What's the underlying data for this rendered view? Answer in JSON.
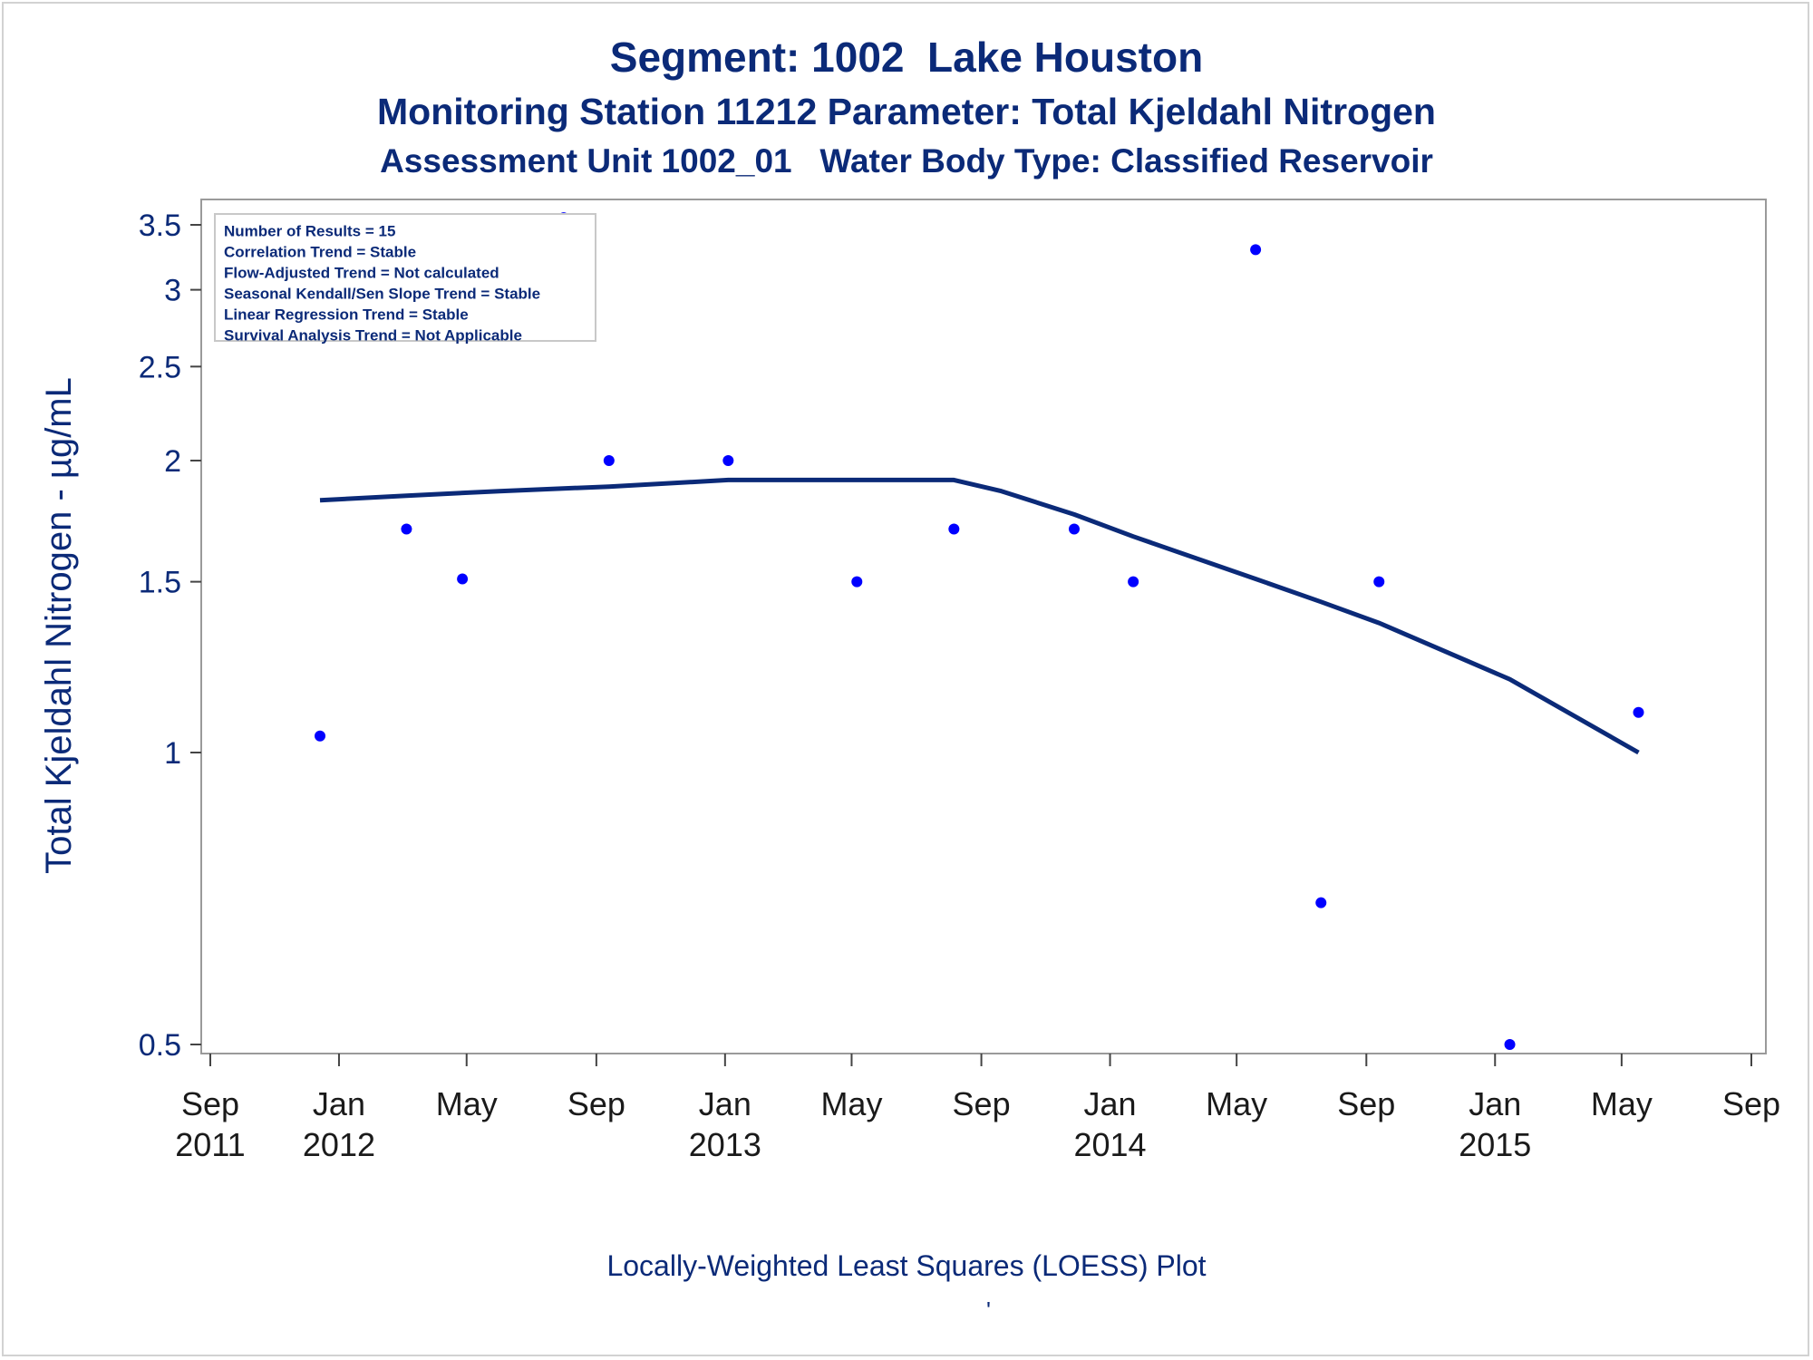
{
  "titles": {
    "line1": "Segment: 1002  Lake Houston",
    "line2": "Monitoring Station 11212 Parameter: Total Kjeldahl Nitrogen",
    "line3": "Assessment Unit 1002_01   Water Body Type: Classified Reservoir"
  },
  "footnote": "Locally-Weighted Least Squares (LOESS) Plot",
  "footnote_mark": "'",
  "chart_data": {
    "type": "scatter",
    "y_scale": "log",
    "ylabel": "Total Kjeldahl Nitrogen -  µg/mL",
    "xlabel": "",
    "ylim": [
      0.49,
      3.6
    ],
    "xlim": [
      "2011-08-15",
      "2015-09-15"
    ],
    "y_ticks": [
      {
        "value": 0.5,
        "label": "0.5"
      },
      {
        "value": 1,
        "label": "1"
      },
      {
        "value": 1.5,
        "label": "1.5"
      },
      {
        "value": 2,
        "label": "2"
      },
      {
        "value": 2.5,
        "label": "2.5"
      },
      {
        "value": 3,
        "label": "3"
      },
      {
        "value": 3.5,
        "label": "3.5"
      }
    ],
    "x_ticks": [
      {
        "date": "2011-09-01",
        "label": "Sep",
        "year": "2011"
      },
      {
        "date": "2012-01-01",
        "label": "Jan",
        "year": "2012"
      },
      {
        "date": "2012-05-01",
        "label": "May",
        "year": ""
      },
      {
        "date": "2012-09-01",
        "label": "Sep",
        "year": ""
      },
      {
        "date": "2013-01-01",
        "label": "Jan",
        "year": "2013"
      },
      {
        "date": "2013-05-01",
        "label": "May",
        "year": ""
      },
      {
        "date": "2013-09-01",
        "label": "Sep",
        "year": ""
      },
      {
        "date": "2014-01-01",
        "label": "Jan",
        "year": "2014"
      },
      {
        "date": "2014-05-01",
        "label": "May",
        "year": ""
      },
      {
        "date": "2014-09-01",
        "label": "Sep",
        "year": ""
      },
      {
        "date": "2015-01-01",
        "label": "Jan",
        "year": "2015"
      },
      {
        "date": "2015-05-01",
        "label": "May",
        "year": ""
      },
      {
        "date": "2015-09-01",
        "label": "Sep",
        "year": ""
      }
    ],
    "series": [
      {
        "kind": "points",
        "color": "#0000ff",
        "points": [
          {
            "x": "2011-12-14",
            "y": 1.04
          },
          {
            "x": "2012-03-05",
            "y": 1.7
          },
          {
            "x": "2012-04-27",
            "y": 1.51
          },
          {
            "x": "2012-08-01",
            "y": 3.56
          },
          {
            "x": "2012-09-13",
            "y": 2.0
          },
          {
            "x": "2013-01-04",
            "y": 2.0
          },
          {
            "x": "2013-05-06",
            "y": 1.5
          },
          {
            "x": "2013-08-06",
            "y": 1.7
          },
          {
            "x": "2013-11-28",
            "y": 1.7
          },
          {
            "x": "2014-01-23",
            "y": 1.5
          },
          {
            "x": "2014-05-19",
            "y": 3.3
          },
          {
            "x": "2014-07-20",
            "y": 0.7
          },
          {
            "x": "2014-09-13",
            "y": 1.5
          },
          {
            "x": "2015-01-15",
            "y": 0.5
          },
          {
            "x": "2015-05-17",
            "y": 1.1
          }
        ]
      },
      {
        "kind": "line",
        "color": "#0b2a78",
        "points": [
          {
            "x": "2011-12-14",
            "y": 1.82
          },
          {
            "x": "2012-03-05",
            "y": 1.84
          },
          {
            "x": "2012-06-01",
            "y": 1.86
          },
          {
            "x": "2012-09-13",
            "y": 1.88
          },
          {
            "x": "2013-01-04",
            "y": 1.91
          },
          {
            "x": "2013-05-06",
            "y": 1.91
          },
          {
            "x": "2013-08-06",
            "y": 1.91
          },
          {
            "x": "2013-09-20",
            "y": 1.86
          },
          {
            "x": "2013-11-28",
            "y": 1.76
          },
          {
            "x": "2014-01-23",
            "y": 1.67
          },
          {
            "x": "2014-05-19",
            "y": 1.51
          },
          {
            "x": "2014-07-20",
            "y": 1.43
          },
          {
            "x": "2014-09-13",
            "y": 1.36
          },
          {
            "x": "2015-01-15",
            "y": 1.19
          },
          {
            "x": "2015-05-17",
            "y": 1.0
          }
        ]
      }
    ],
    "legend": {
      "placement": "top-left",
      "entries": [
        "Number of Results = 15",
        "Correlation Trend = Stable",
        "Flow-Adjusted Trend = Not calculated",
        "Seasonal Kendall/Sen Slope Trend = Stable",
        "Linear Regression Trend = Stable",
        "Survival Analysis Trend = Not Applicable"
      ]
    },
    "grid": false
  }
}
